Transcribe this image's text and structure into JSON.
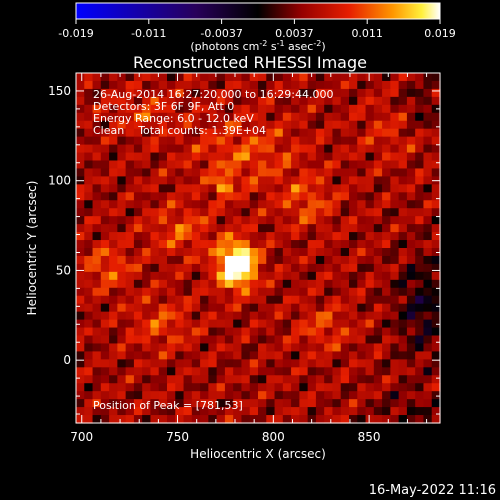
{
  "chart_data": {
    "type": "heatmap",
    "title": "Reconstructed RHESSI Image",
    "xlabel": "Heliocentric X (arcsec)",
    "ylabel": "Heliocentric Y (arcsec)",
    "xlim": [
      697,
      887
    ],
    "ylim": [
      -35,
      160
    ],
    "x_ticks": [
      700,
      750,
      800,
      850
    ],
    "y_ticks": [
      0,
      50,
      100,
      150
    ],
    "colorbar": {
      "min": -0.019,
      "max": 0.019,
      "ticks": [
        "-0.019",
        "-0.011",
        "-0.0037",
        "0.0037",
        "0.011",
        "0.019"
      ],
      "units_prefix": "(photons cm",
      "units_exp1": "-2",
      "units_mid": " s",
      "units_exp2": "-1",
      "units_mid2": " asec",
      "units_exp3": "-2",
      "units_suffix": ")"
    },
    "peak": {
      "x": 781,
      "y": 53,
      "value": 0.019
    },
    "sources": [
      {
        "x": 781,
        "y": 53,
        "sx": 7,
        "sy": 9,
        "amp": 0.0195
      },
      {
        "x": 774,
        "y": 97,
        "sx": 3,
        "sy": 4,
        "amp": 0.009
      },
      {
        "x": 752,
        "y": 72,
        "sx": 12,
        "sy": 10,
        "amp": 0.005
      },
      {
        "x": 742,
        "y": 20,
        "sx": 12,
        "sy": 10,
        "amp": 0.0045
      },
      {
        "x": 785,
        "y": 115,
        "sx": 20,
        "sy": 14,
        "amp": 0.005
      },
      {
        "x": 818,
        "y": 88,
        "sx": 10,
        "sy": 10,
        "amp": 0.005
      },
      {
        "x": 714,
        "y": 52,
        "sx": 9,
        "sy": 9,
        "amp": 0.0055
      },
      {
        "x": 826,
        "y": 18,
        "sx": 10,
        "sy": 9,
        "amp": 0.0045
      },
      {
        "x": 732,
        "y": 138,
        "sx": 12,
        "sy": 8,
        "amp": 0.004
      },
      {
        "x": 862,
        "y": 128,
        "sx": 12,
        "sy": 12,
        "amp": 0.003
      },
      {
        "x": 878,
        "y": 30,
        "sx": 10,
        "sy": 20,
        "amp": -0.006
      },
      {
        "x": 877,
        "y": 140,
        "sx": 7,
        "sy": 10,
        "amp": -0.004
      },
      {
        "x": 870,
        "y": -28,
        "sx": 12,
        "sy": 8,
        "amp": -0.003
      }
    ],
    "background": 0.0055,
    "ripple_amp": 0.0035
  },
  "annotations": {
    "time": "26-Aug-2014 16:27:20.000 to 16:29:44.000",
    "detectors": "Detectors: 3F 6F 9F, Att 0",
    "energy": "Energy Range: 6.0 - 12.0 keV",
    "clean": "Clean    Total counts: 1.39E+04",
    "peak": "Position of Peak = [781,53]"
  },
  "footer": {
    "date": "16-May-2022 11:16"
  },
  "colors": {
    "background": "#000000",
    "text": "#ffffff"
  }
}
